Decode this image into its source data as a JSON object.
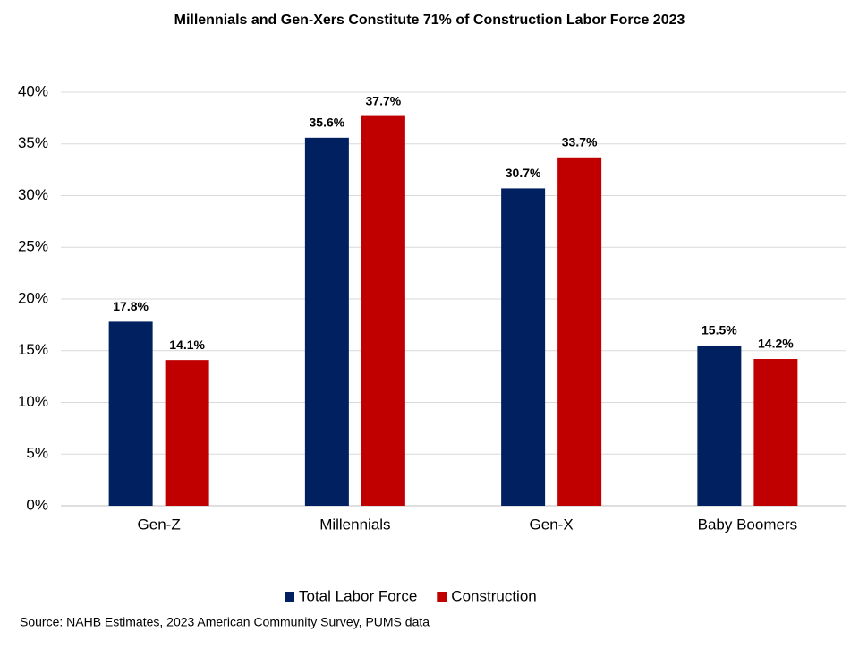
{
  "chart_data": {
    "type": "bar",
    "title": "Millennials and Gen-Xers Constitute 71% of Construction Labor Force 2023",
    "categories": [
      "Gen-Z",
      "Millennials",
      "Gen-X",
      "Baby Boomers"
    ],
    "series": [
      {
        "name": "Total Labor Force",
        "color": "#002060",
        "values": [
          17.8,
          35.6,
          30.7,
          15.5
        ],
        "value_labels": [
          "17.8%",
          "35.6%",
          "30.7%",
          "15.5%"
        ]
      },
      {
        "name": "Construction",
        "color": "#c00000",
        "values": [
          14.1,
          37.7,
          33.7,
          14.2
        ],
        "value_labels": [
          "14.1%",
          "37.7%",
          "33.7%",
          "14.2%"
        ]
      }
    ],
    "ylim": [
      0,
      40
    ],
    "yticks": [
      {
        "value": 0,
        "label": "0%"
      },
      {
        "value": 5,
        "label": "5%"
      },
      {
        "value": 10,
        "label": "10%"
      },
      {
        "value": 15,
        "label": "15%"
      },
      {
        "value": 20,
        "label": "20%"
      },
      {
        "value": 25,
        "label": "25%"
      },
      {
        "value": 30,
        "label": "30%"
      },
      {
        "value": 35,
        "label": "35%"
      },
      {
        "value": 40,
        "label": "40%"
      }
    ],
    "grid": true,
    "legend": "bottom",
    "source": "Source: NAHB Estimates, 2023 American Community Survey, PUMS data"
  }
}
